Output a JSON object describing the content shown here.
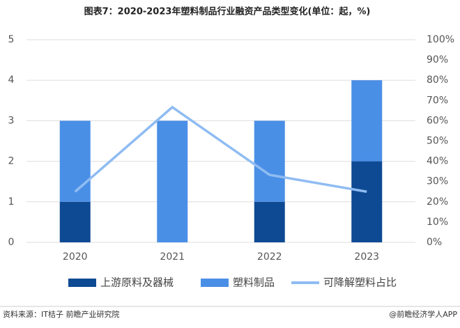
{
  "chart_data": {
    "type": "bar",
    "title": "图表7：2020-2023年塑料制品行业融资产品类型变化(单位：起，%)",
    "categories": [
      "2020",
      "2021",
      "2022",
      "2023"
    ],
    "series": [
      {
        "name": "上游原料及器械",
        "color": "#0e4a93",
        "values": [
          1,
          0,
          1,
          2
        ]
      },
      {
        "name": "塑料制品",
        "color": "#4a8fe6",
        "values": [
          2,
          3,
          2,
          2
        ]
      },
      {
        "name": "可降解塑料占比",
        "color": "#8fbcf2",
        "type": "line",
        "axis": "y2",
        "values": [
          25,
          66.7,
          33.3,
          25
        ]
      }
    ],
    "ylim": [
      0,
      5
    ],
    "yticks": [
      0,
      1,
      2,
      3,
      4,
      5
    ],
    "y2lim": [
      0,
      100
    ],
    "y2ticks": [
      {
        "value": 0,
        "label": "0%"
      },
      {
        "value": 10,
        "label": "10%"
      },
      {
        "value": 20,
        "label": "20%"
      },
      {
        "value": 30,
        "label": "30%"
      },
      {
        "value": 40,
        "label": "40%"
      },
      {
        "value": 50,
        "label": "50%"
      },
      {
        "value": 60,
        "label": "60%"
      },
      {
        "value": 70,
        "label": "70%"
      },
      {
        "value": 80,
        "label": "80%"
      },
      {
        "value": 90,
        "label": "90%"
      },
      {
        "value": 100,
        "label": "100%"
      }
    ],
    "grid": true,
    "legend": "bottom"
  },
  "source": "资料来源：IT桔子 前瞻产业研究院",
  "credit": "@前瞻经济学人APP"
}
